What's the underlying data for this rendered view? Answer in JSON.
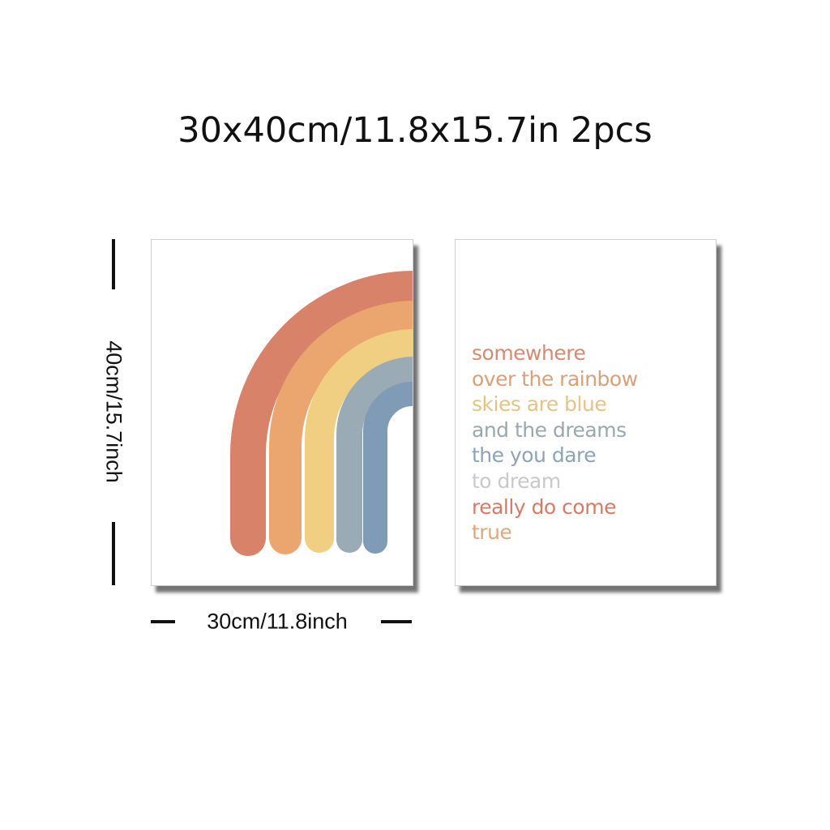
{
  "headline": "30x40cm/11.8x15.7in 2pcs",
  "dimensions": {
    "height_label": "40cm/15.7inch",
    "width_label": "30cm/11.8inch"
  },
  "left_poster": {
    "artwork": "rainbow-arcs",
    "arc_colors": [
      "#d9826a",
      "#eba670",
      "#f0ce82",
      "#9aabb5",
      "#7f9bb6"
    ]
  },
  "right_poster": {
    "quote_lines": [
      {
        "text": "somewhere",
        "color": "#d58a73"
      },
      {
        "text": "over the rainbow",
        "color": "#d9a178"
      },
      {
        "text": "skies are blue",
        "color": "#e2c488"
      },
      {
        "text": "and the dreams",
        "color": "#9aa8ad"
      },
      {
        "text": "the you dare",
        "color": "#8da3b6"
      },
      {
        "text": "to dream",
        "color": "#c9c9c9"
      },
      {
        "text": "really do come",
        "color": "#d27c67"
      },
      {
        "text": "true",
        "color": "#dfa77c"
      }
    ]
  }
}
